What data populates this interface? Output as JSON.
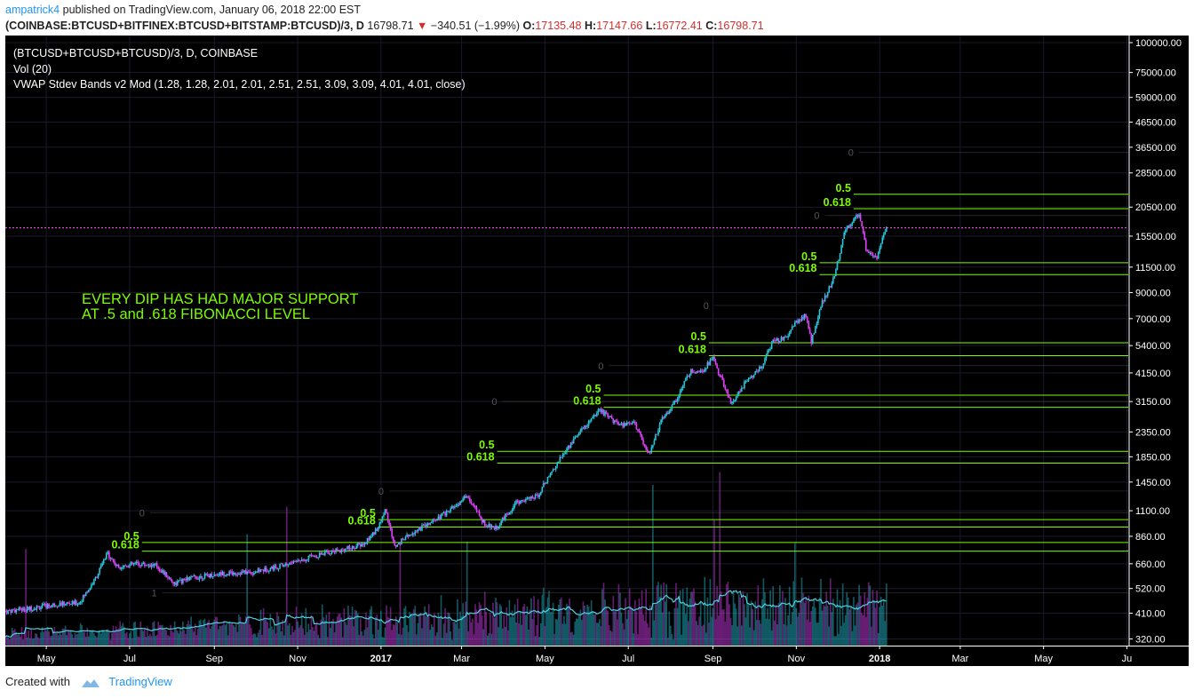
{
  "header": {
    "user": "ampatrick4",
    "published": "published on TradingView.com, January 06, 2018 22:00 EST"
  },
  "quote": {
    "symbol": "(COINBASE:BTCUSD+BITFINEX:BTCUSD+BITSTAMP:BTCUSD)/3, D",
    "last": "16798.71",
    "change": "−340.51 (−1.99%)",
    "o_label": "O:",
    "o": "17135.48",
    "h_label": "H:",
    "h": "17147.66",
    "l_label": "L:",
    "l": "16772.41",
    "c_label": "C:",
    "c": "16798.71"
  },
  "legend": {
    "line1": "(BTCUSD+BTCUSD+BTCUSD)/3, D, COINBASE",
    "line2": "Vol (20)",
    "line3": "VWAP Stdev Bands v2 Mod (1.28, 1.28, 2.01, 2.01, 2.51, 2.51, 3.09, 3.09, 4.01, 4.01, close)"
  },
  "footer": {
    "created": "Created with",
    "brand": "TradingView"
  },
  "colors": {
    "background": "#000000",
    "up": "#26c6da",
    "down": "#e040fb",
    "fib": "#7cfc00",
    "last_price": "#ff40ff",
    "vwap": "#4dd0e1",
    "grid": "#1a1a2a",
    "axis_text": "#ffffff",
    "neutral": "#555555"
  },
  "chart_data": {
    "type": "candlestick",
    "scale": "log",
    "ylim": [
      300,
      100000
    ],
    "y_ticks": [
      "100000.00",
      "75000.00",
      "59000.00",
      "46500.00",
      "36500.00",
      "28500.00",
      "20500.00",
      "15500.00",
      "11500.00",
      "9000.00",
      "7000.00",
      "5400.00",
      "4150.00",
      "3150.00",
      "2350.00",
      "1850.00",
      "1450.00",
      "1100.00",
      "860.00",
      "660.00",
      "520.00",
      "410.00",
      "320.00"
    ],
    "x_ticks": [
      "May",
      "Jul",
      "Sep",
      "Nov",
      "2017",
      "Mar",
      "May",
      "Jul",
      "Sep",
      "Nov",
      "2018",
      "Mar",
      "May",
      "Ju"
    ],
    "x_range": [
      "2016-04-01",
      "2018-07-02"
    ],
    "x_tick_dates": [
      "2016-05-01",
      "2016-07-01",
      "2016-09-01",
      "2016-11-01",
      "2017-01-01",
      "2017-03-01",
      "2017-05-01",
      "2017-07-01",
      "2017-09-01",
      "2017-11-01",
      "2018-01-01",
      "2018-03-01",
      "2018-05-01",
      "2018-07-01"
    ],
    "last_price": 16798.71,
    "last_price_label": "16798.71",
    "price_path": [
      [
        "2016-04-01",
        418
      ],
      [
        "2016-04-20",
        430
      ],
      [
        "2016-05-10",
        448
      ],
      [
        "2016-05-25",
        452
      ],
      [
        "2016-06-05",
        560
      ],
      [
        "2016-06-15",
        730
      ],
      [
        "2016-06-22",
        640
      ],
      [
        "2016-07-05",
        660
      ],
      [
        "2016-07-20",
        650
      ],
      [
        "2016-08-03",
        545
      ],
      [
        "2016-08-15",
        575
      ],
      [
        "2016-09-05",
        600
      ],
      [
        "2016-10-01",
        610
      ],
      [
        "2016-10-25",
        660
      ],
      [
        "2016-11-10",
        705
      ],
      [
        "2016-11-25",
        740
      ],
      [
        "2016-12-10",
        770
      ],
      [
        "2016-12-20",
        800
      ],
      [
        "2016-12-31",
        960
      ],
      [
        "2017-01-04",
        1120
      ],
      [
        "2017-01-11",
        780
      ],
      [
        "2017-01-25",
        900
      ],
      [
        "2017-02-10",
        1000
      ],
      [
        "2017-02-28",
        1190
      ],
      [
        "2017-03-05",
        1270
      ],
      [
        "2017-03-18",
        960
      ],
      [
        "2017-03-26",
        930
      ],
      [
        "2017-04-10",
        1190
      ],
      [
        "2017-04-25",
        1260
      ],
      [
        "2017-05-10",
        1750
      ],
      [
        "2017-05-25",
        2300
      ],
      [
        "2017-06-10",
        2900
      ],
      [
        "2017-06-25",
        2500
      ],
      [
        "2017-07-05",
        2600
      ],
      [
        "2017-07-16",
        1900
      ],
      [
        "2017-07-25",
        2600
      ],
      [
        "2017-08-05",
        3200
      ],
      [
        "2017-08-15",
        4200
      ],
      [
        "2017-08-25",
        4300
      ],
      [
        "2017-09-01",
        4800
      ],
      [
        "2017-09-14",
        3100
      ],
      [
        "2017-09-25",
        3800
      ],
      [
        "2017-10-05",
        4300
      ],
      [
        "2017-10-15",
        5600
      ],
      [
        "2017-10-25",
        5800
      ],
      [
        "2017-11-01",
        6800
      ],
      [
        "2017-11-08",
        7200
      ],
      [
        "2017-11-12",
        5600
      ],
      [
        "2017-11-20",
        8200
      ],
      [
        "2017-11-28",
        10200
      ],
      [
        "2017-12-07",
        16500
      ],
      [
        "2017-12-17",
        19200
      ],
      [
        "2017-12-22",
        13800
      ],
      [
        "2017-12-30",
        12500
      ],
      [
        "2018-01-03",
        15100
      ],
      [
        "2018-01-06",
        16798
      ]
    ],
    "fib_levels": [
      {
        "label": "0.5",
        "value": 810,
        "from": "2016-07-10"
      },
      {
        "label": "0.618",
        "value": 745,
        "from": "2016-07-10"
      },
      {
        "label": "0.5",
        "value": 1010,
        "from": "2016-12-30"
      },
      {
        "label": "0.618",
        "value": 940,
        "from": "2016-12-30"
      },
      {
        "label": "0.5",
        "value": 1950,
        "from": "2017-03-27"
      },
      {
        "label": "0.618",
        "value": 1740,
        "from": "2017-03-27"
      },
      {
        "label": "0.5",
        "value": 3350,
        "from": "2017-06-13"
      },
      {
        "label": "0.618",
        "value": 2980,
        "from": "2017-06-13"
      },
      {
        "label": "0.5",
        "value": 5550,
        "from": "2017-08-29"
      },
      {
        "label": "0.618",
        "value": 4900,
        "from": "2017-08-29"
      },
      {
        "label": "0.5",
        "value": 12000,
        "from": "2017-11-18"
      },
      {
        "label": "0.618",
        "value": 10700,
        "from": "2017-11-18"
      },
      {
        "label": "0.5",
        "value": 23200,
        "from": "2017-12-13"
      },
      {
        "label": "0.618",
        "value": 20200,
        "from": "2017-12-13"
      }
    ],
    "fib_zero_markers": [
      {
        "label": "0",
        "date": "2016-07-12",
        "value": 1080
      },
      {
        "label": "1",
        "date": "2016-07-21",
        "value": 500
      },
      {
        "label": "0",
        "date": "2017-01-03",
        "value": 1330
      },
      {
        "label": "0",
        "date": "2017-03-27",
        "value": 3150
      },
      {
        "label": "0",
        "date": "2017-06-13",
        "value": 4450
      },
      {
        "label": "0",
        "date": "2017-08-29",
        "value": 7950
      },
      {
        "label": "0",
        "date": "2017-11-18",
        "value": 18900
      },
      {
        "label": "0",
        "date": "2017-12-13",
        "value": 34700
      }
    ],
    "annotation": "EVERY DIP HAS HAD MAJOR SUPPORT\nAT .5 and .618 FIBONACCI LEVEL"
  }
}
